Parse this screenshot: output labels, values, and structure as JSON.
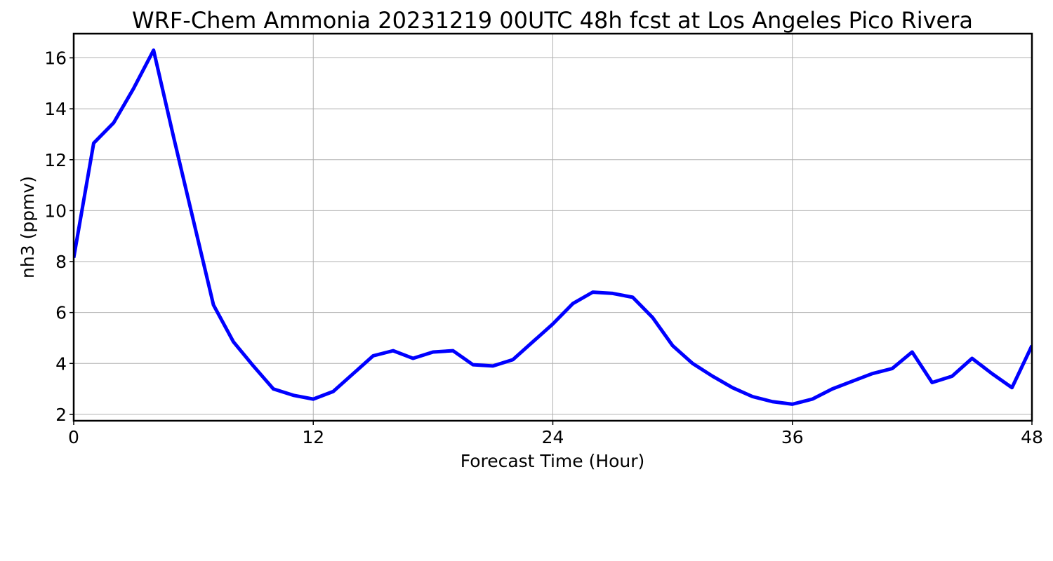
{
  "chart_data": {
    "type": "line",
    "title": "WRF-Chem Ammonia  20231219 00UTC 48h fcst at Los Angeles Pico Rivera",
    "xlabel": "Forecast Time (Hour)",
    "ylabel": "nh3  (ppmv)",
    "xlim": [
      0,
      48
    ],
    "ylim": [
      1.75,
      16.95
    ],
    "xticks": [
      0,
      12,
      24,
      36,
      48
    ],
    "yticks": [
      2,
      4,
      6,
      8,
      10,
      12,
      14,
      16
    ],
    "grid": true,
    "line_color": "#0000ff",
    "x": [
      0,
      1,
      2,
      3,
      4,
      5,
      6,
      7,
      8,
      9,
      10,
      11,
      12,
      13,
      14,
      15,
      16,
      17,
      18,
      19,
      20,
      21,
      22,
      23,
      24,
      25,
      26,
      27,
      28,
      29,
      30,
      31,
      32,
      33,
      34,
      35,
      36,
      37,
      38,
      39,
      40,
      41,
      42,
      43,
      44,
      45,
      46,
      47,
      48
    ],
    "series": [
      {
        "values": [
          8.15,
          12.65,
          13.45,
          14.8,
          16.3,
          12.9,
          9.6,
          6.3,
          4.85,
          3.9,
          3.0,
          2.75,
          2.6,
          2.9,
          3.6,
          4.3,
          4.5,
          4.2,
          4.45,
          4.5,
          3.95,
          3.9,
          4.15,
          4.85,
          5.55,
          6.35,
          6.8,
          6.75,
          6.6,
          5.8,
          4.7,
          4.0,
          3.5,
          3.05,
          2.7,
          2.5,
          2.4,
          2.6,
          3.0,
          3.3,
          3.6,
          3.8,
          4.45,
          3.25,
          3.5,
          4.2,
          3.6,
          3.05,
          4.7
        ]
      }
    ]
  }
}
